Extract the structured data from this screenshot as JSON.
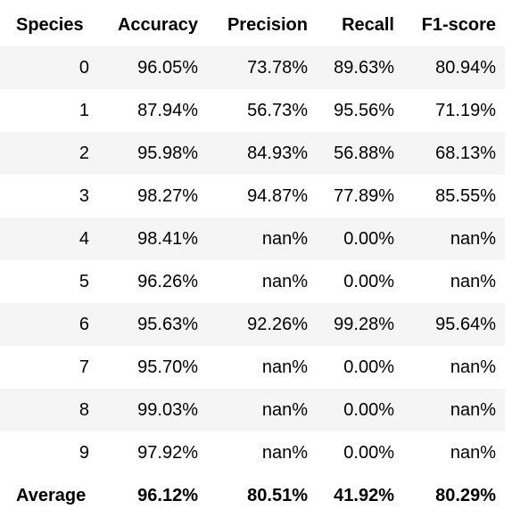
{
  "table": {
    "headers": [
      "Species",
      "Accuracy",
      "Precision",
      "Recall",
      "F1-score"
    ],
    "rows": [
      [
        "0",
        "96.05%",
        "73.78%",
        "89.63%",
        "80.94%"
      ],
      [
        "1",
        "87.94%",
        "56.73%",
        "95.56%",
        "71.19%"
      ],
      [
        "2",
        "95.98%",
        "84.93%",
        "56.88%",
        "68.13%"
      ],
      [
        "3",
        "98.27%",
        "94.87%",
        "77.89%",
        "85.55%"
      ],
      [
        "4",
        "98.41%",
        "nan%",
        "0.00%",
        "nan%"
      ],
      [
        "5",
        "96.26%",
        "nan%",
        "0.00%",
        "nan%"
      ],
      [
        "6",
        "95.63%",
        "92.26%",
        "99.28%",
        "95.64%"
      ],
      [
        "7",
        "95.70%",
        "nan%",
        "0.00%",
        "nan%"
      ],
      [
        "8",
        "99.03%",
        "nan%",
        "0.00%",
        "nan%"
      ],
      [
        "9",
        "97.92%",
        "nan%",
        "0.00%",
        "nan%"
      ]
    ],
    "footer": [
      "Average",
      "96.12%",
      "80.51%",
      "41.92%",
      "80.29%"
    ]
  }
}
